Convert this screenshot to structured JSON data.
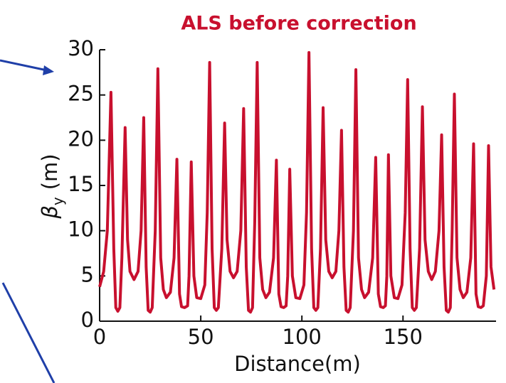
{
  "chart_data": {
    "type": "line",
    "title": "ALS before correction",
    "xlabel": "Distance(m)",
    "ylabel": {
      "symbol": "β",
      "subscript": "y",
      "unit": "(m)"
    },
    "color": "#c8102e",
    "xlim": [
      0,
      196
    ],
    "xticks": [
      0,
      50,
      100,
      150
    ],
    "ylim": [
      0,
      30
    ],
    "yticks": [
      0,
      5,
      10,
      15,
      20,
      25,
      30
    ],
    "x": [
      0,
      2,
      3.8,
      5.6,
      7,
      8,
      9,
      10,
      11,
      12.6,
      13.8,
      15,
      17,
      19,
      20.5,
      21.8,
      23,
      24,
      25,
      26,
      27.5,
      28.8,
      30.2,
      31.5,
      33,
      35,
      36.8,
      38.2,
      39.5,
      40.5,
      42,
      43.5,
      44.2,
      45.3,
      46.6,
      48,
      50,
      52,
      53.2,
      54.4,
      55.6,
      56.7,
      57.7,
      58.7,
      60.4,
      61.8,
      63,
      64.5,
      66.2,
      68,
      69.8,
      71.2,
      72.5,
      73.6,
      74.6,
      75.6,
      76.7,
      77.9,
      79.2,
      80.6,
      82.2,
      84,
      86,
      87.4,
      88.6,
      89.7,
      91,
      92.2,
      93,
      94,
      95.3,
      97,
      99,
      101,
      102.3,
      103.5,
      104.8,
      105.9,
      106.9,
      107.9,
      109.2,
      110.5,
      111.8,
      113.3,
      115,
      116.8,
      118.3,
      119.6,
      120.8,
      121.9,
      122.9,
      123.9,
      125.5,
      126.7,
      128,
      129.5,
      131,
      133,
      135,
      136.5,
      137.8,
      138.9,
      140.2,
      141.3,
      142,
      142.8,
      144,
      145.7,
      147.5,
      149.5,
      151.1,
      152.3,
      153.5,
      154.6,
      155.6,
      156.6,
      158.2,
      159.6,
      160.9,
      162.5,
      164.2,
      166,
      167.8,
      169.1,
      170.3,
      171.4,
      172.4,
      173.4,
      174.3,
      175.4,
      176.7,
      178.2,
      179.8,
      181.6,
      183.5,
      184.9,
      186.1,
      187.2,
      188.5,
      189.7,
      191.2,
      192.3,
      193.5,
      195
    ],
    "values": [
      3.8,
      5.5,
      10,
      25.3,
      8,
      1.5,
      1.1,
      1.5,
      7,
      21.4,
      9,
      5.5,
      4.6,
      5.5,
      10,
      22.5,
      6,
      1.2,
      1.0,
      1.5,
      10,
      27.9,
      7,
      3.5,
      2.6,
      3.2,
      7,
      17.9,
      3,
      1.6,
      1.5,
      1.7,
      5,
      17.6,
      5,
      2.6,
      2.5,
      4,
      12,
      28.6,
      8,
      1.5,
      1.2,
      1.5,
      8,
      21.9,
      9,
      5.5,
      4.8,
      5.5,
      10,
      23.5,
      6,
      1.2,
      1.0,
      1.5,
      11,
      28.6,
      7,
      3.5,
      2.6,
      3.2,
      7,
      17.8,
      3,
      1.6,
      1.5,
      1.7,
      5,
      16.8,
      5,
      2.6,
      2.5,
      4,
      12,
      29.7,
      8,
      1.5,
      1.2,
      1.5,
      8,
      23.6,
      9,
      5.5,
      4.8,
      5.5,
      10,
      21.1,
      6,
      1.2,
      1.0,
      1.5,
      10,
      27.8,
      7,
      3.5,
      2.6,
      3.2,
      7,
      18.1,
      3,
      1.6,
      1.5,
      1.7,
      5,
      18.4,
      5,
      2.6,
      2.5,
      4,
      12,
      26.7,
      8,
      1.5,
      1.2,
      1.5,
      8,
      23.7,
      9,
      5.5,
      4.6,
      5.5,
      10,
      20.6,
      6,
      1.2,
      1.0,
      1.5,
      10,
      25.1,
      7,
      3.5,
      2.6,
      3.2,
      7,
      19.6,
      3,
      1.6,
      1.5,
      1.7,
      5,
      19.4,
      6,
      3.5
    ]
  }
}
